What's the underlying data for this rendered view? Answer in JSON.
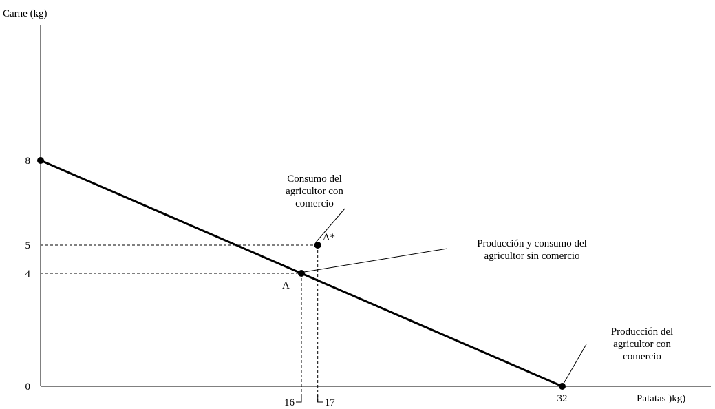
{
  "chart_data": {
    "type": "line",
    "ylabel": "Carne (kg)",
    "xlabel": "Patatas )kg)",
    "xlim": [
      0,
      32
    ],
    "ylim": [
      0,
      8
    ],
    "x_ticks": [
      {
        "value": 16,
        "label": "16"
      },
      {
        "value": 17,
        "label": "17"
      },
      {
        "value": 32,
        "label": "32"
      }
    ],
    "y_ticks": [
      {
        "value": 0,
        "label": "0"
      },
      {
        "value": 4,
        "label": "4"
      },
      {
        "value": 5,
        "label": "5"
      },
      {
        "value": 8,
        "label": "8"
      }
    ],
    "frontier": [
      [
        0,
        8
      ],
      [
        32,
        0
      ]
    ],
    "points": [
      {
        "id": "y-intercept",
        "label": "",
        "x": 0,
        "y": 8
      },
      {
        "id": "A",
        "label": "A",
        "x": 16,
        "y": 4
      },
      {
        "id": "A-star",
        "label": "A*",
        "x": 17,
        "y": 5
      },
      {
        "id": "x-intercept",
        "label": "",
        "x": 32,
        "y": 0
      }
    ],
    "annotations": [
      {
        "id": "consumo-con-comercio",
        "lines": [
          "Consumo del",
          "agricultor con",
          "comercio"
        ],
        "points_to": "A-star"
      },
      {
        "id": "produccion-sin-comercio",
        "lines": [
          "Producción y consumo del",
          "agricultor sin comercio"
        ],
        "points_to": "A"
      },
      {
        "id": "produccion-con-comercio",
        "lines": [
          "Producción del",
          "agricultor con",
          "comercio"
        ],
        "points_to": "x-intercept"
      }
    ]
  }
}
